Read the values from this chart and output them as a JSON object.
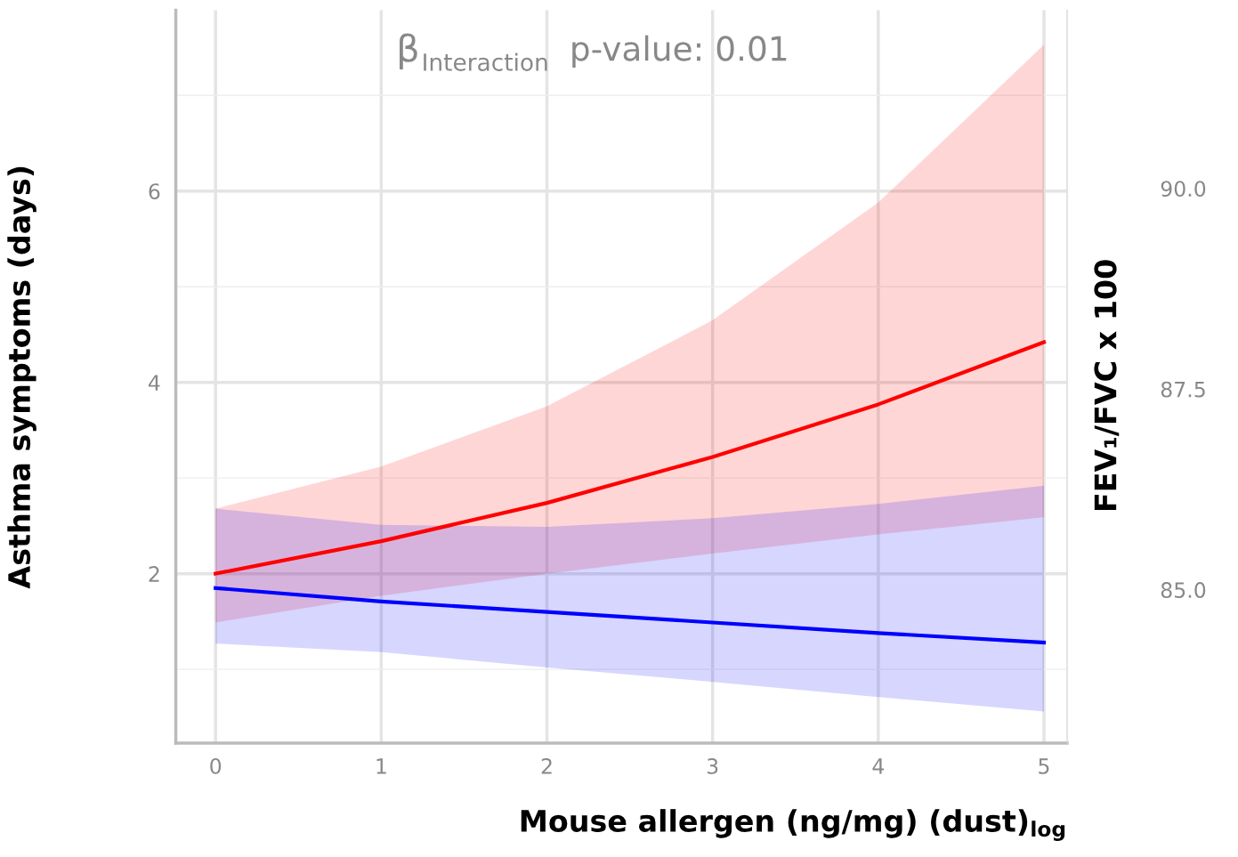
{
  "chart_data": {
    "type": "line",
    "xlabel": "Mouse allergen (ng/mg) (dust)$_{log}$",
    "ylabel": "Asthma symptoms (days)",
    "y2label": "FEV₁/FVC x 100",
    "annotations": [
      "β$_{Interaction}$",
      "p-value: 0.01"
    ],
    "x": [
      0,
      1,
      2,
      3,
      4,
      5
    ],
    "series": [
      {
        "color": "#ff0000",
        "values": [
          2.0,
          2.34,
          2.74,
          3.22,
          3.77,
          4.42
        ],
        "lower": [
          1.49,
          1.77,
          2.0,
          2.21,
          2.41,
          2.59
        ],
        "upper": [
          2.68,
          3.12,
          3.75,
          4.65,
          5.88,
          7.53
        ]
      },
      {
        "color": "#0000ff",
        "values": [
          1.85,
          1.71,
          1.6,
          1.49,
          1.38,
          1.28
        ],
        "lower": [
          1.27,
          1.18,
          1.02,
          0.87,
          0.71,
          0.56
        ],
        "upper": [
          2.68,
          2.51,
          2.49,
          2.58,
          2.73,
          2.92
        ]
      }
    ],
    "xlim": [
      -0.24,
      5.14
    ],
    "xticks": [
      0,
      1,
      2,
      3,
      4,
      5
    ],
    "ylim": [
      0.23,
      7.89
    ],
    "yticks": [
      2,
      4,
      6
    ],
    "y2lim": [
      83.09,
      92.22
    ],
    "y2ticks": [
      {
        "value": 85,
        "label": "85.0"
      },
      {
        "value": 87.5,
        "label": "87.5"
      },
      {
        "value": 90,
        "label": "90.0"
      }
    ],
    "grid": true,
    "legend": false,
    "marker": "none",
    "line_style": "solid"
  }
}
